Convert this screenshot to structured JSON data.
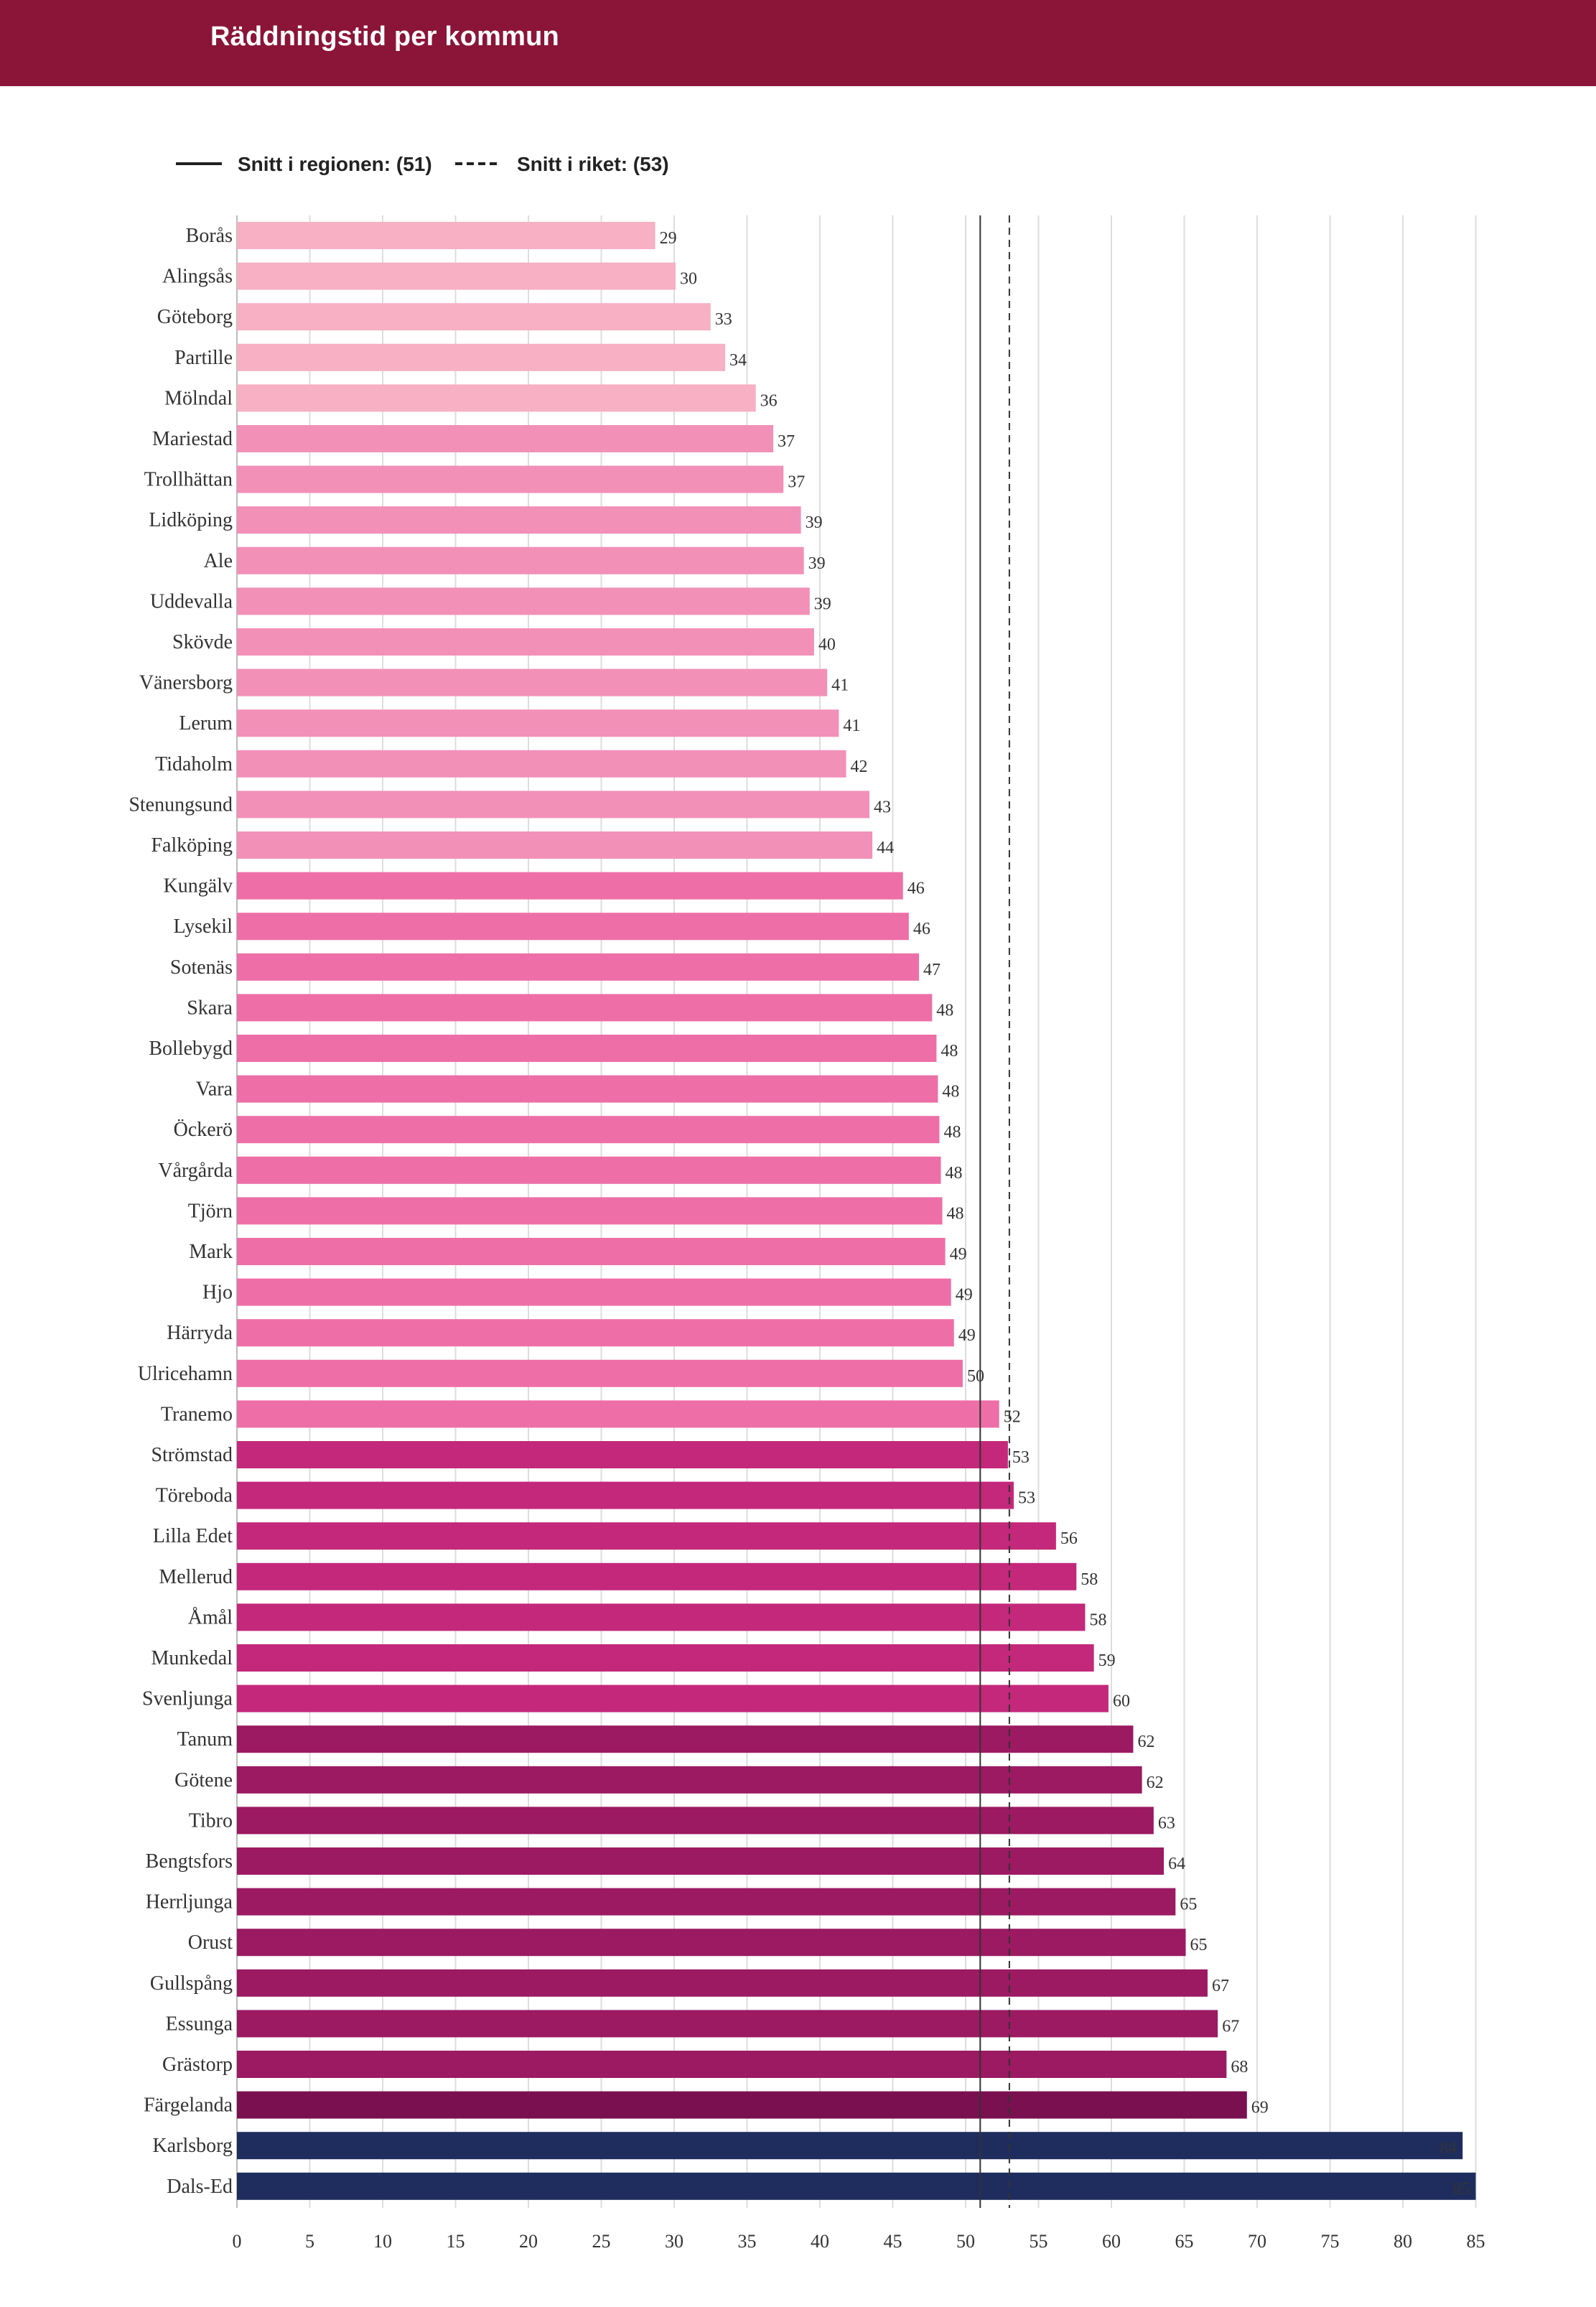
{
  "header": {
    "title": "Räddningstid per kommun"
  },
  "chart_data": {
    "type": "bar",
    "orientation": "horizontal",
    "title": "Räddningstid per kommun",
    "categories": [
      "Borås",
      "Alingsås",
      "Göteborg",
      "Partille",
      "Mölndal",
      "Mariestad",
      "Trollhättan",
      "Lidköping",
      "Ale",
      "Uddevalla",
      "Skövde",
      "Vänersborg",
      "Lerum",
      "Tidaholm",
      "Stenungsund",
      "Falköping",
      "Kungälv",
      "Lysekil",
      "Sotenäs",
      "Skara",
      "Bollebygd",
      "Vara",
      "Öckerö",
      "Vårgårda",
      "Tjörn",
      "Mark",
      "Hjo",
      "Härryda",
      "Ulricehamn",
      "Tranemo",
      "Strömstad",
      "Töreboda",
      "Lilla Edet",
      "Mellerud",
      "Åmål",
      "Munkedal",
      "Svenljunga",
      "Tanum",
      "Götene",
      "Tibro",
      "Bengtsfors",
      "Herrljunga",
      "Orust",
      "Gullspång",
      "Essunga",
      "Grästorp",
      "Färgelanda",
      "Karlsborg",
      "Dals-Ed"
    ],
    "values": [
      29,
      30,
      33,
      34,
      36,
      37,
      37,
      39,
      39,
      39,
      40,
      41,
      41,
      42,
      43,
      44,
      46,
      46,
      47,
      48,
      48,
      48,
      48,
      48,
      48,
      49,
      49,
      49,
      50,
      52,
      53,
      53,
      56,
      58,
      58,
      59,
      60,
      62,
      62,
      63,
      64,
      65,
      65,
      67,
      67,
      68,
      69,
      84,
      85
    ],
    "plot_values": [
      28.7,
      30.1,
      32.5,
      33.5,
      35.6,
      36.8,
      37.5,
      38.7,
      38.9,
      39.3,
      39.6,
      40.5,
      41.3,
      41.8,
      43.4,
      43.6,
      45.7,
      46.1,
      46.8,
      47.7,
      48.0,
      48.1,
      48.2,
      48.3,
      48.4,
      48.6,
      49.0,
      49.2,
      49.8,
      52.3,
      52.9,
      53.3,
      56.2,
      57.6,
      58.2,
      58.8,
      59.8,
      61.5,
      62.1,
      62.9,
      63.6,
      64.4,
      65.1,
      66.6,
      67.3,
      67.9,
      69.3,
      84.1,
      85.0
    ],
    "bar_colors": [
      "#f7b0c4",
      "#f7b0c4",
      "#f7b0c4",
      "#f7b0c4",
      "#f7b0c4",
      "#f290b8",
      "#f290b8",
      "#f290b8",
      "#f290b8",
      "#f290b8",
      "#f290b8",
      "#f290b8",
      "#f290b8",
      "#f290b8",
      "#f290b8",
      "#f290b8",
      "#ee6fa8",
      "#ee6fa8",
      "#ee6fa8",
      "#ee6fa8",
      "#ee6fa8",
      "#ee6fa8",
      "#ee6fa8",
      "#ee6fa8",
      "#ee6fa8",
      "#ee6fa8",
      "#ee6fa8",
      "#ee6fa8",
      "#ee6fa8",
      "#ee6fa8",
      "#c4287a",
      "#c4287a",
      "#c4287a",
      "#c4287a",
      "#c4287a",
      "#c4287a",
      "#c4287a",
      "#9b1a62",
      "#9b1a62",
      "#9b1a62",
      "#9b1a62",
      "#9b1a62",
      "#9b1a62",
      "#9b1a62",
      "#9b1a62",
      "#9b1a62",
      "#7a1050",
      "#1f2d5e",
      "#1f2d5e"
    ],
    "inside_label_indices": [
      47,
      48
    ],
    "x_ticks": [
      0,
      5,
      10,
      15,
      20,
      25,
      30,
      35,
      40,
      45,
      50,
      55,
      60,
      65,
      70,
      75,
      80,
      85
    ],
    "xlim": [
      0,
      85
    ],
    "xlabel": "",
    "ylabel": "",
    "grid": true,
    "reference_lines": [
      {
        "name": "Snitt i regionen",
        "value": 51,
        "label": "Snitt i regionen: (51)",
        "style": "solid"
      },
      {
        "name": "Snitt i riket",
        "value": 53,
        "label": "Snitt i riket: (53)",
        "style": "dashed"
      }
    ],
    "legend_position": "top-left"
  }
}
